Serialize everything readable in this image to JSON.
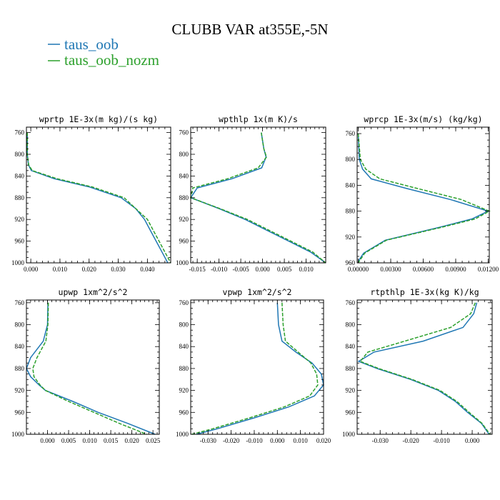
{
  "figure": {
    "title": "CLUBB VAR at355E,-5N",
    "legend": [
      {
        "name": "taus_oob",
        "color": "#1f77b4",
        "dash": "solid"
      },
      {
        "name": "taus_oob_nozm",
        "color": "#2ca02c",
        "dash": "dashed"
      }
    ]
  },
  "chart_data": [
    {
      "type": "line",
      "title": "wprtp  1E-3x(m kg)/(s kg)",
      "xlim": [
        -0.0015,
        0.048
      ],
      "ylim": [
        1000,
        750
      ],
      "yticks": [
        760,
        800,
        840,
        880,
        920,
        960,
        1000
      ],
      "xticks": [
        0.0,
        0.01,
        0.02,
        0.03,
        0.04
      ],
      "xtick_labels": [
        "0.000",
        "0.010",
        "0.020",
        "0.030",
        "0.040"
      ],
      "y": [
        760,
        800,
        820,
        830,
        845,
        860,
        880,
        900,
        920,
        940,
        960,
        980,
        1000
      ],
      "series": [
        {
          "name": "taus_oob",
          "x": [
            -0.0012,
            -0.0012,
            -0.0008,
            0.0002,
            0.008,
            0.02,
            0.031,
            0.036,
            0.039,
            0.041,
            0.043,
            0.045,
            0.047
          ]
        },
        {
          "name": "taus_oob_nozm",
          "x": [
            -0.0012,
            -0.0012,
            -0.0007,
            0.0005,
            0.009,
            0.021,
            0.032,
            0.036,
            0.04,
            0.042,
            0.044,
            0.046,
            0.048
          ]
        }
      ]
    },
    {
      "type": "line",
      "title": "wpthlp  1x(m K)/s",
      "xlim": [
        -0.0165,
        0.0145
      ],
      "ylim": [
        1000,
        750
      ],
      "yticks": [
        760,
        800,
        840,
        880,
        920,
        960,
        1000
      ],
      "xticks": [
        -0.015,
        -0.01,
        -0.005,
        0.0,
        0.005,
        0.01
      ],
      "xtick_labels": [
        "-0.015",
        "-0.010",
        "-0.005",
        "0.000",
        "0.005",
        "0.010"
      ],
      "y": [
        760,
        790,
        805,
        825,
        845,
        862,
        880,
        900,
        920,
        940,
        960,
        980,
        1000
      ],
      "series": [
        {
          "name": "taus_oob",
          "x": [
            -0.0003,
            0.0003,
            0.0008,
            -0.0002,
            -0.007,
            -0.015,
            -0.0165,
            -0.01,
            -0.004,
            0.001,
            0.006,
            0.011,
            0.0145
          ]
        },
        {
          "name": "taus_oob_nozm",
          "x": [
            -0.0003,
            0.0003,
            0.0009,
            -0.001,
            -0.008,
            -0.016,
            -0.0165,
            -0.0098,
            -0.0035,
            0.0015,
            0.0065,
            0.0115,
            0.0145
          ]
        }
      ]
    },
    {
      "type": "line",
      "title": "wprcp  1E-3x(m/s) (kg/kg)",
      "xlim": [
        -0.0001,
        0.0121
      ],
      "ylim": [
        960,
        750
      ],
      "yticks": [
        760,
        800,
        840,
        880,
        920,
        960
      ],
      "xticks": [
        0.0,
        0.003,
        0.006,
        0.009,
        0.012
      ],
      "xtick_labels": [
        "0.00000",
        "0.00300",
        "0.00600",
        "0.00900",
        "0.01200"
      ],
      "y": [
        760,
        800,
        815,
        830,
        845,
        862,
        880,
        892,
        905,
        925,
        945,
        955,
        960
      ],
      "series": [
        {
          "name": "taus_oob",
          "x": [
            0.0,
            0.0001,
            0.0004,
            0.0012,
            0.0045,
            0.0085,
            0.012,
            0.0105,
            0.0075,
            0.0025,
            0.0005,
            0.0001,
            0.0
          ],
          "dummy": null
        },
        {
          "name": "taus_oob_nozm",
          "x": [
            0.0,
            0.0002,
            0.0007,
            0.002,
            0.0055,
            0.0095,
            0.0121,
            0.0108,
            0.0077,
            0.0026,
            0.0006,
            0.0002,
            0.0
          ]
        }
      ]
    },
    {
      "type": "line",
      "title": "upwp  1xm^2/s^2",
      "xlim": [
        -0.005,
        0.0265
      ],
      "ylim": [
        1000,
        755
      ],
      "yticks": [
        760,
        800,
        840,
        880,
        920,
        960,
        1000
      ],
      "xticks": [
        0.0,
        0.005,
        0.01,
        0.015,
        0.02,
        0.025
      ],
      "xtick_labels": [
        "0.000",
        "0.005",
        "0.010",
        "0.015",
        "0.020",
        "0.025"
      ],
      "y": [
        760,
        800,
        830,
        860,
        880,
        895,
        910,
        920,
        940,
        960,
        980,
        1000
      ],
      "series": [
        {
          "name": "taus_oob",
          "x": [
            0.0001,
            0.0,
            -0.001,
            -0.004,
            -0.005,
            -0.004,
            -0.002,
            -0.0005,
            0.006,
            0.012,
            0.019,
            0.0255
          ]
        },
        {
          "name": "taus_oob_nozm",
          "x": [
            0.0002,
            0.0001,
            -0.0004,
            -0.0025,
            -0.0035,
            -0.0032,
            -0.0018,
            -0.0005,
            0.005,
            0.011,
            0.017,
            0.0235
          ]
        }
      ]
    },
    {
      "type": "line",
      "title": "vpwp  1xm^2/s^2",
      "xlim": [
        -0.0375,
        0.02
      ],
      "ylim": [
        1000,
        755
      ],
      "yticks": [
        760,
        800,
        840,
        880,
        920,
        960,
        1000
      ],
      "xticks": [
        -0.03,
        -0.02,
        -0.01,
        0.0,
        0.01,
        0.02
      ],
      "xtick_labels": [
        "-0.030",
        "-0.020",
        "-0.010",
        "0.000",
        "0.010",
        "0.020"
      ],
      "y": [
        760,
        800,
        830,
        850,
        870,
        890,
        910,
        930,
        950,
        970,
        990,
        1000
      ],
      "series": [
        {
          "name": "taus_oob",
          "x": [
            0.0,
            0.0005,
            0.002,
            0.008,
            0.015,
            0.019,
            0.02,
            0.016,
            0.005,
            -0.01,
            -0.026,
            -0.035
          ]
        },
        {
          "name": "taus_oob_nozm",
          "x": [
            0.002,
            0.0025,
            0.0035,
            0.009,
            0.0145,
            0.017,
            0.0175,
            0.014,
            0.003,
            -0.012,
            -0.028,
            -0.037
          ]
        }
      ]
    },
    {
      "type": "line",
      "title": "rtpthlp  1E-3x(kg K)/kg",
      "xlim": [
        -0.0375,
        0.0065
      ],
      "ylim": [
        1000,
        755
      ],
      "yticks": [
        760,
        800,
        840,
        880,
        920,
        960,
        1000
      ],
      "xticks": [
        -0.03,
        -0.02,
        -0.01,
        0.0
      ],
      "xtick_labels": [
        "-0.030",
        "-0.020",
        "-0.010",
        "0.000"
      ],
      "y": [
        760,
        780,
        805,
        830,
        850,
        867,
        880,
        900,
        920,
        940,
        960,
        980,
        1000
      ],
      "series": [
        {
          "name": "taus_oob",
          "x": [
            0.0015,
            0.0005,
            -0.003,
            -0.016,
            -0.032,
            -0.037,
            -0.031,
            -0.02,
            -0.011,
            -0.0055,
            -0.0015,
            0.003,
            0.0055
          ]
        },
        {
          "name": "taus_oob_nozm",
          "x": [
            0.001,
            -0.0005,
            -0.007,
            -0.022,
            -0.034,
            -0.0365,
            -0.0305,
            -0.0195,
            -0.0105,
            -0.005,
            -0.001,
            0.0032,
            0.0058
          ]
        }
      ]
    }
  ]
}
